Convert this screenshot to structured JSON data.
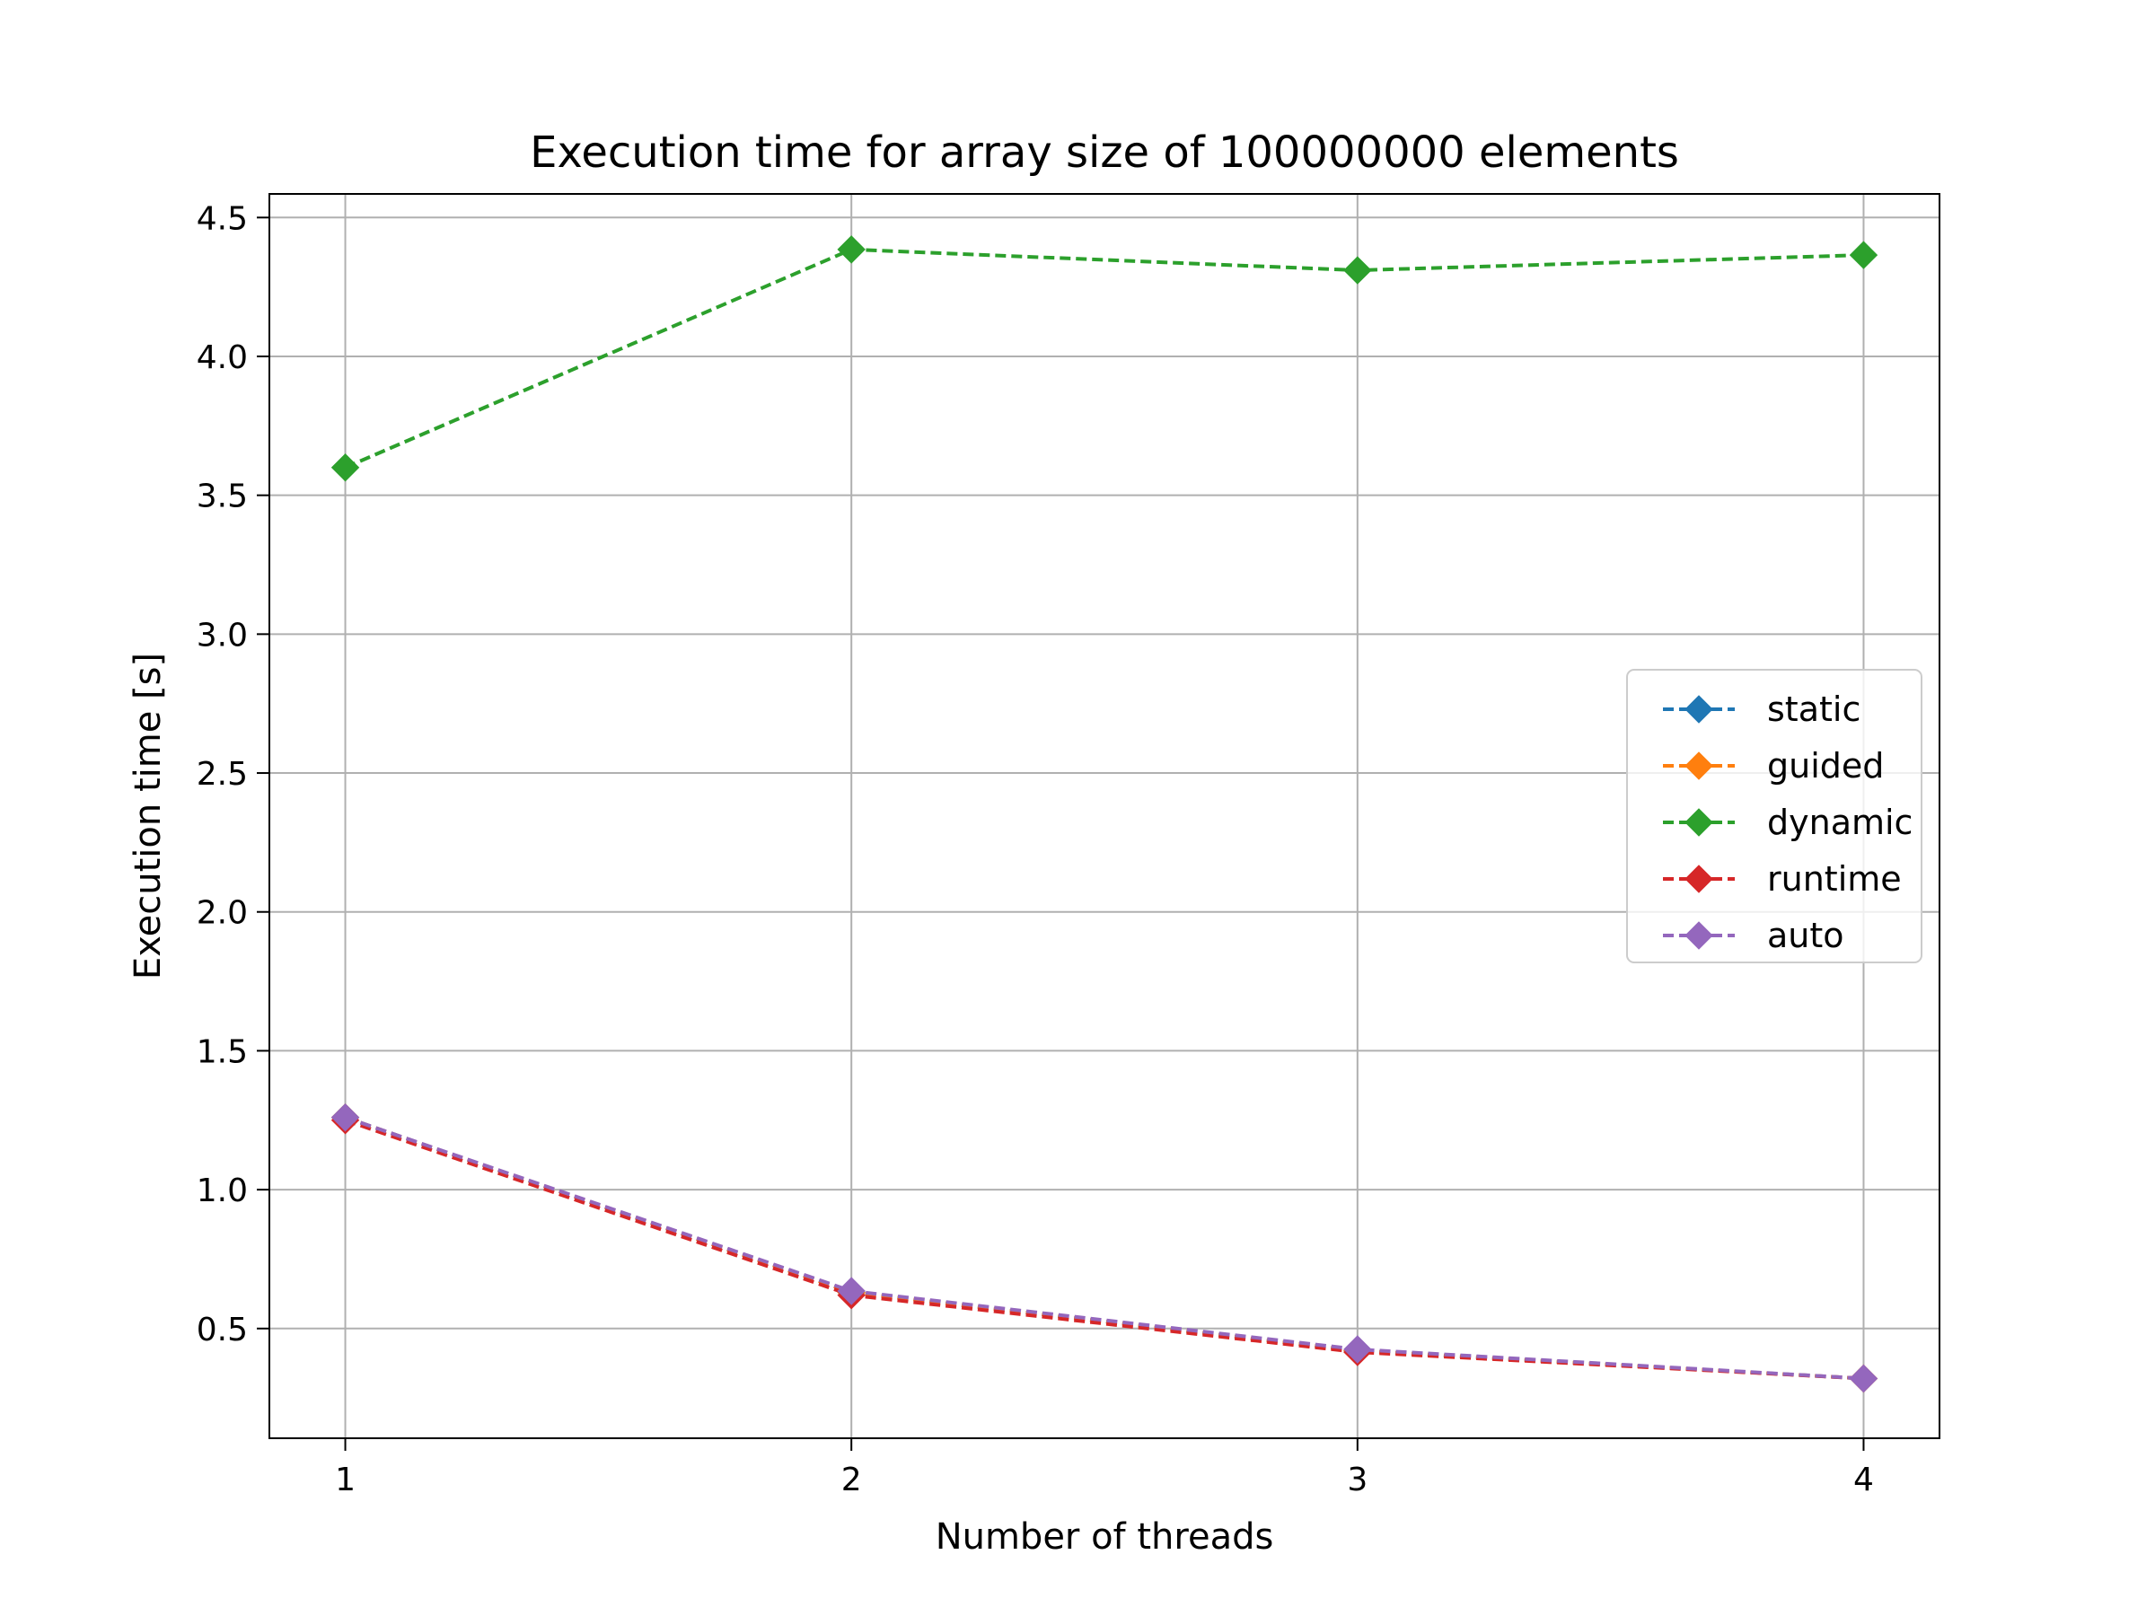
{
  "chart_data": {
    "type": "line",
    "title": "Execution time for array size of 100000000 elements",
    "xlabel": "Number of threads",
    "ylabel": "Execution time [s]",
    "x": [
      1,
      2,
      3,
      4
    ],
    "xlim": [
      0.85,
      4.15
    ],
    "ylim": [
      0.105,
      4.585
    ],
    "xticks": [
      1,
      2,
      3,
      4
    ],
    "xtick_labels": [
      "1",
      "2",
      "3",
      "4"
    ],
    "yticks": [
      0.5,
      1.0,
      1.5,
      2.0,
      2.5,
      3.0,
      3.5,
      4.0,
      4.5
    ],
    "ytick_labels": [
      "0.5",
      "1.0",
      "1.5",
      "2.0",
      "2.5",
      "3.0",
      "3.5",
      "4.0",
      "4.5"
    ],
    "grid": true,
    "legend_position": "center-right",
    "line_style": "dashed",
    "marker": "diamond",
    "series": [
      {
        "name": "static",
        "color": "#1f77b4",
        "values": [
          1.26,
          0.63,
          0.42,
          0.32
        ]
      },
      {
        "name": "guided",
        "color": "#ff7f0e",
        "values": [
          1.26,
          0.63,
          0.42,
          0.32
        ]
      },
      {
        "name": "dynamic",
        "color": "#2ca02c",
        "values": [
          3.6,
          4.385,
          4.31,
          4.365
        ]
      },
      {
        "name": "runtime",
        "color": "#d62728",
        "values": [
          1.25,
          0.62,
          0.415,
          0.32
        ]
      },
      {
        "name": "auto",
        "color": "#9467bd",
        "values": [
          1.26,
          0.635,
          0.425,
          0.32
        ]
      }
    ]
  }
}
